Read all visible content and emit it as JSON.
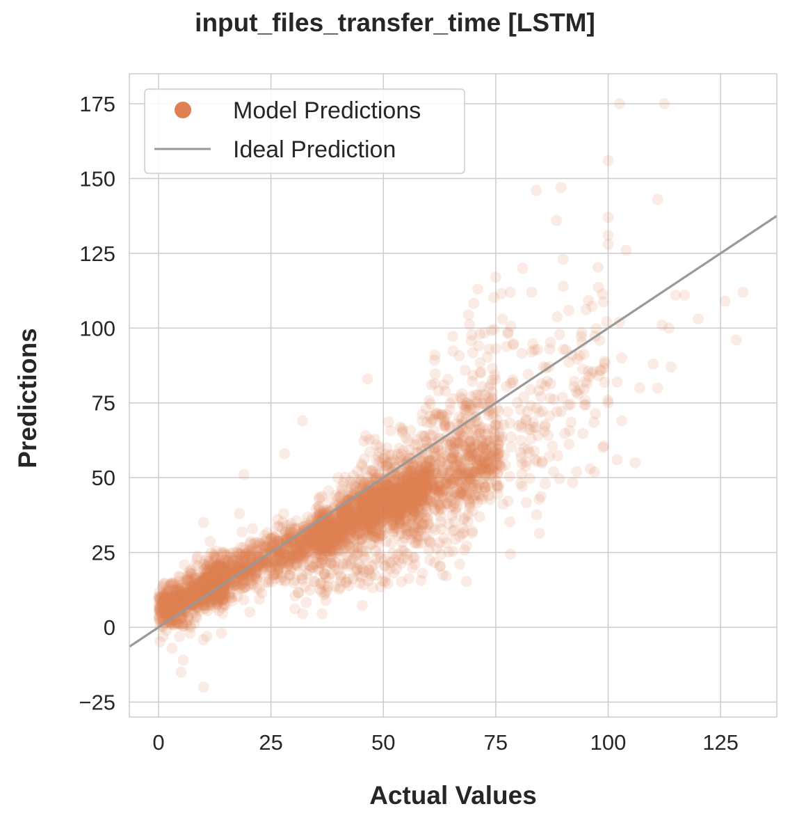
{
  "chart_data": {
    "type": "scatter",
    "title": "input_files_transfer_time [LSTM]",
    "xlabel": "Actual Values",
    "ylabel": "Predictions",
    "xlim": [
      -6.5,
      137.5
    ],
    "ylim": [
      -30,
      185
    ],
    "xticks": [
      0,
      25,
      50,
      75,
      100,
      125
    ],
    "yticks": [
      -25,
      0,
      25,
      50,
      75,
      100,
      125,
      150,
      175
    ],
    "xtick_labels": [
      "0",
      "25",
      "50",
      "75",
      "100",
      "125"
    ],
    "ytick_labels": [
      "−25",
      "0",
      "25",
      "50",
      "75",
      "100",
      "125",
      "150",
      "175"
    ],
    "grid": true,
    "legend_position": "top-left",
    "colors": {
      "points": "#e07f52",
      "ideal_line": "#999999",
      "grid": "#cccccc",
      "frame": "#cccccc"
    },
    "point_alpha": 0.15,
    "series": [
      {
        "name": "Model Predictions",
        "kind": "scatter",
        "density_bands": [
          {
            "x_range": [
              0,
              15
            ],
            "y_center": [
              6,
              16
            ],
            "y_spread": 4,
            "count": 700
          },
          {
            "x_range": [
              10,
              40
            ],
            "y_center": [
              14,
              33
            ],
            "y_spread": 4,
            "count": 900
          },
          {
            "x_range": [
              35,
              60
            ],
            "y_center": [
              31,
              46
            ],
            "y_spread": 5,
            "count": 800
          },
          {
            "x_range": [
              40,
              76
            ],
            "y_center": [
              36,
              57
            ],
            "y_spread": 6,
            "count": 850
          },
          {
            "x_range": [
              45,
              75
            ],
            "y_center": [
              44,
              75
            ],
            "y_spread": 8,
            "count": 300
          },
          {
            "x_range": [
              30,
              55
            ],
            "y_center": [
              14,
              22
            ],
            "y_spread": 5,
            "count": 120
          },
          {
            "x_range": [
              55,
              70
            ],
            "y_center": [
              25,
              35
            ],
            "y_spread": 6,
            "count": 80
          },
          {
            "x_range": [
              75,
              100
            ],
            "y_center": [
              55,
              90
            ],
            "y_spread": 14,
            "count": 160
          },
          {
            "x_range": [
              60,
              80
            ],
            "y_center": [
              80,
              105
            ],
            "y_spread": 10,
            "count": 40
          }
        ],
        "outliers": [
          [
            102.5,
            175
          ],
          [
            112.5,
            175
          ],
          [
            100,
            156
          ],
          [
            89.5,
            147
          ],
          [
            84,
            146
          ],
          [
            111,
            143
          ],
          [
            88.5,
            136
          ],
          [
            100,
            137
          ],
          [
            100,
            131
          ],
          [
            100,
            128
          ],
          [
            104,
            126
          ],
          [
            90,
            123
          ],
          [
            81,
            120
          ],
          [
            75,
            117
          ],
          [
            90,
            114
          ],
          [
            71,
            113
          ],
          [
            83,
            112
          ],
          [
            117,
            111
          ],
          [
            115,
            111
          ],
          [
            130,
            112
          ],
          [
            126,
            109
          ],
          [
            120,
            103
          ],
          [
            112,
            101
          ],
          [
            113.5,
            100
          ],
          [
            102.5,
            102
          ],
          [
            128.5,
            96
          ],
          [
            87,
            93
          ],
          [
            83,
            92
          ],
          [
            92,
            91
          ],
          [
            103,
            90
          ],
          [
            110,
            88
          ],
          [
            114,
            87
          ],
          [
            102,
            82
          ],
          [
            107,
            80
          ],
          [
            111,
            80
          ],
          [
            100,
            75
          ],
          [
            103,
            69
          ],
          [
            102,
            56
          ],
          [
            106,
            55
          ],
          [
            93,
            52
          ],
          [
            96,
            53
          ],
          [
            86,
            48
          ],
          [
            19,
            51
          ],
          [
            28,
            58
          ],
          [
            32,
            69
          ],
          [
            46.5,
            83
          ],
          [
            10,
            35
          ],
          [
            18,
            38
          ],
          [
            1,
            -3
          ],
          [
            3,
            -7
          ],
          [
            5,
            -15
          ],
          [
            5.5,
            -11
          ],
          [
            10,
            -20
          ],
          [
            7,
            -2
          ],
          [
            14,
            -2
          ]
        ]
      },
      {
        "name": "Ideal Prediction",
        "kind": "line",
        "points": [
          [
            -6.5,
            -6.5
          ],
          [
            137.5,
            137.5
          ]
        ]
      }
    ]
  }
}
